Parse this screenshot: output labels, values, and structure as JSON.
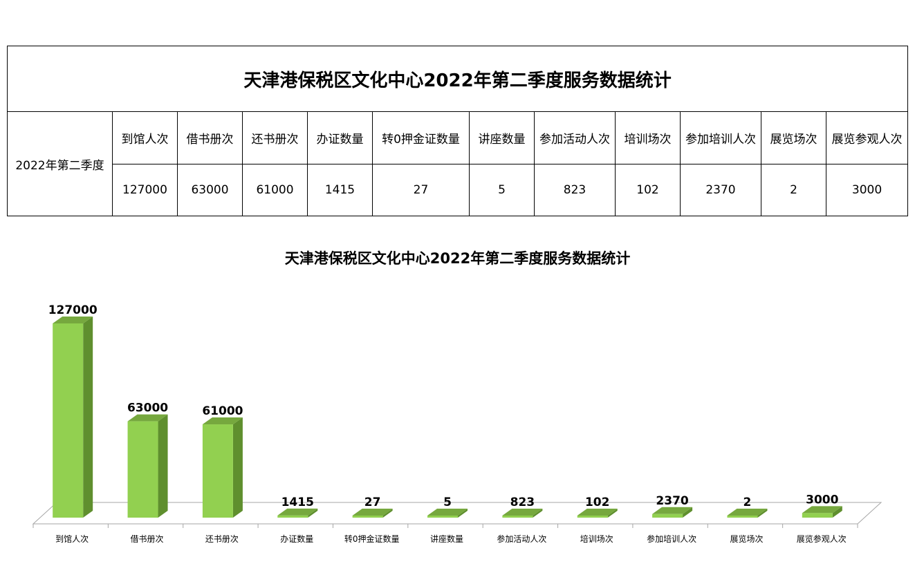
{
  "table": {
    "title": "天津港保税区文化中心2022年第二季度服务数据统计",
    "row_header": "2022年第二季度",
    "headers": [
      "到馆人次",
      "借书册次",
      "还书册次",
      "办证数量",
      "转0押金证数量",
      "讲座数量",
      "参加活动人次",
      "培训场次",
      "参加培训人次",
      "展览场次",
      "展览参观人次"
    ],
    "values": [
      "127000",
      "63000",
      "61000",
      "1415",
      "27",
      "5",
      "823",
      "102",
      "2370",
      "2",
      "3000"
    ]
  },
  "chart_data": {
    "type": "bar",
    "title": "天津港保税区文化中心2022年第二季度服务数据统计",
    "categories": [
      "到馆人次",
      "借书册次",
      "还书册次",
      "办证数量",
      "转0押金证数量",
      "讲座数量",
      "参加活动人次",
      "培训场次",
      "参加培训人次",
      "展览场次",
      "展览参观人次"
    ],
    "values": [
      127000,
      63000,
      61000,
      1415,
      27,
      5,
      823,
      102,
      2370,
      2,
      3000
    ],
    "xlabel": "",
    "ylabel": "",
    "ylim": [
      0,
      127000
    ],
    "grid": false,
    "legend": "none",
    "style": "3d-column",
    "colors": {
      "bar_front": "#92d050",
      "bar_side": "#5f8f2e",
      "bar_top": "#76a83e",
      "floor": "#ffffff",
      "floor_edge": "#a6a6a6"
    }
  }
}
